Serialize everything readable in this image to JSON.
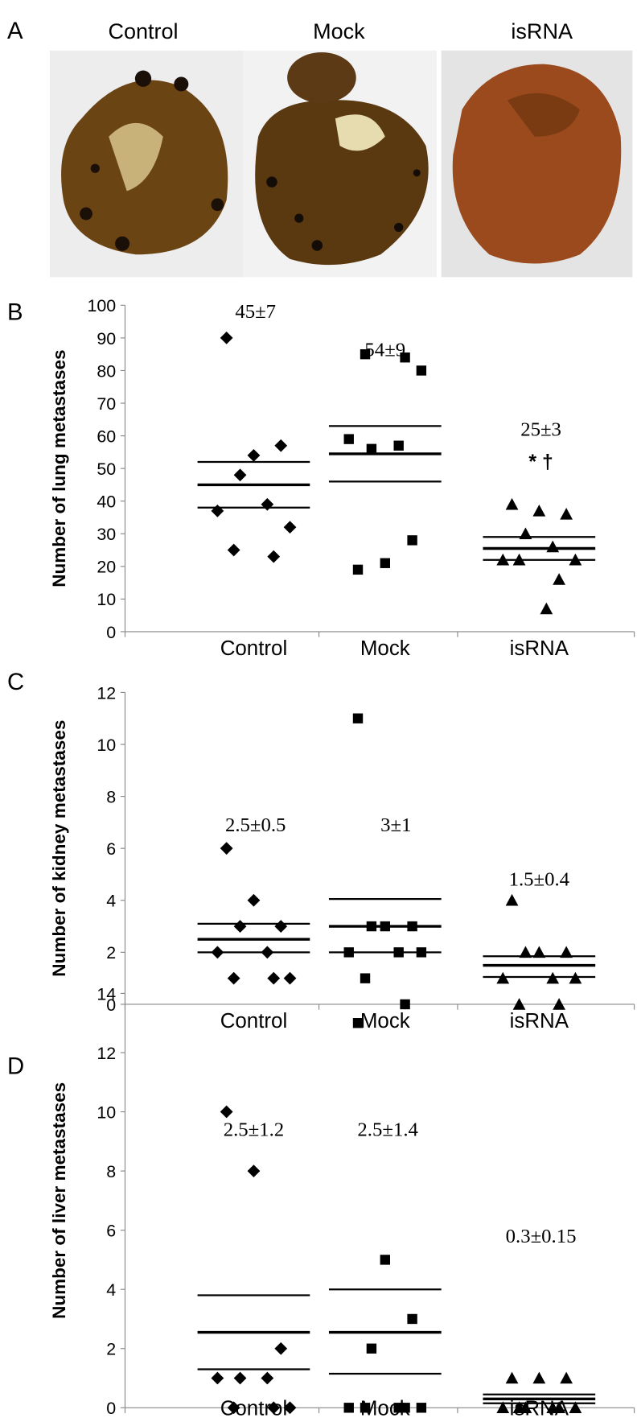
{
  "panel_a": {
    "label": "A",
    "captions": [
      "Control",
      "Mock",
      "isRNA"
    ]
  },
  "chart_data": [
    {
      "type": "dot",
      "panel_label": "B",
      "y_label": "Number of lung metastases",
      "categories": [
        "Control",
        "Mock",
        "isRNA"
      ],
      "color": "#000000",
      "groups": [
        {
          "marker": "diamond",
          "values": [
            90,
            54,
            57,
            48,
            39,
            37,
            32,
            25,
            23
          ],
          "mean": 45,
          "upper": 52,
          "lower": 38
        },
        {
          "marker": "square",
          "values": [
            19,
            21,
            28,
            56,
            57,
            59,
            80,
            85,
            84
          ],
          "mean": 54.5,
          "upper": 63,
          "lower": 46
        },
        {
          "marker": "triangle",
          "values": [
            39,
            37,
            36,
            30,
            26,
            22,
            22,
            22,
            16,
            7
          ],
          "mean": 25.5,
          "upper": 29,
          "lower": 22
        }
      ],
      "annotations": [
        "45±7",
        "54±9",
        "25±3",
        "* †"
      ],
      "ylim": [
        0,
        100
      ],
      "yticks": [
        0,
        10,
        20,
        30,
        40,
        50,
        60,
        70,
        80,
        90,
        100
      ]
    },
    {
      "type": "dot",
      "panel_label": "C",
      "y_label": "Number of kidney metastases",
      "categories": [
        "Control",
        "Mock",
        "isRNA"
      ],
      "color": "#000000",
      "groups": [
        {
          "marker": "diamond",
          "values": [
            6,
            4,
            3,
            3,
            2,
            2,
            1,
            1,
            1
          ],
          "mean": 2.5,
          "upper": 3.1,
          "lower": 2
        },
        {
          "marker": "square",
          "values": [
            11,
            3,
            3,
            3,
            2,
            2,
            2,
            1,
            0
          ],
          "mean": 3,
          "upper": 4.05,
          "lower": 2
        },
        {
          "marker": "triangle",
          "values": [
            4,
            2,
            2,
            2,
            1,
            1,
            1,
            0,
            0
          ],
          "mean": 1.5,
          "upper": 1.85,
          "lower": 1.05
        }
      ],
      "annotations": [
        "2.5±0.5",
        "3±1",
        "1.5±0.4"
      ],
      "ylim": [
        0,
        12
      ],
      "yticks": [
        0,
        2,
        4,
        6,
        8,
        10,
        12
      ]
    },
    {
      "type": "dot",
      "panel_label": "D",
      "y_label": "Number of liver metastases",
      "categories": [
        "Control",
        "Mock",
        "isRNA"
      ],
      "color": "#000000",
      "groups": [
        {
          "marker": "diamond",
          "values": [
            10,
            8,
            2,
            1,
            1,
            1,
            0,
            0,
            0
          ],
          "mean": 2.55,
          "upper": 3.8,
          "lower": 1.3
        },
        {
          "marker": "square",
          "values": [
            13,
            5,
            3,
            2,
            0,
            0,
            0,
            0,
            0
          ],
          "mean": 2.55,
          "upper": 4,
          "lower": 1.15
        },
        {
          "marker": "triangle",
          "values": [
            1,
            1,
            1,
            0,
            0,
            0,
            0,
            0,
            0
          ],
          "mean": 0.3,
          "upper": 0.45,
          "lower": 0.15
        }
      ],
      "annotations": [
        "2.5±1.2",
        "2.5±1.4",
        "0.3±0.15"
      ],
      "ylim": [
        0,
        14
      ],
      "yticks": [
        0,
        2,
        4,
        6,
        8,
        10,
        12,
        14
      ]
    }
  ]
}
